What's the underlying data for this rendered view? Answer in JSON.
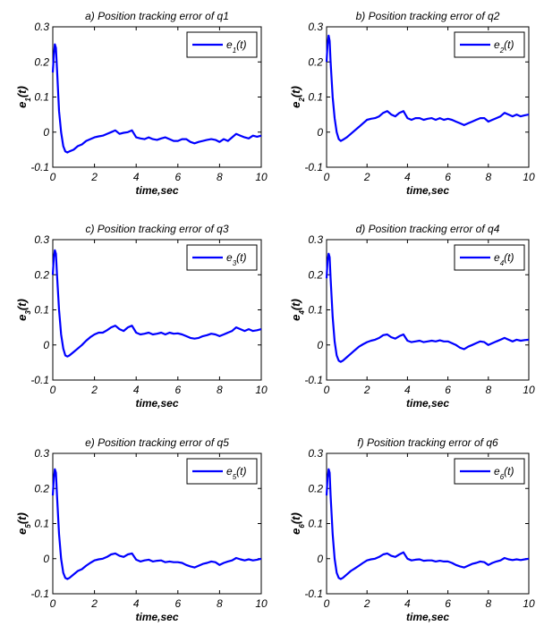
{
  "colors": {
    "line": "#0000ff",
    "axes": "#000000",
    "background": "#ffffff"
  },
  "chart_data": [
    {
      "type": "line",
      "title": "a) Position tracking error of q1",
      "xlabel": "time,sec",
      "ylabel": {
        "base": "e",
        "sub": "1",
        "tail": "(t)"
      },
      "legend": {
        "base": "e",
        "sub": "1",
        "tail": "(t)",
        "position": "top-right"
      },
      "xlim": [
        0,
        10
      ],
      "ylim": [
        -0.1,
        0.3
      ],
      "xticks": [
        "0",
        "2",
        "4",
        "6",
        "8",
        "10"
      ],
      "yticks": [
        "-0.1",
        "0",
        "0.1",
        "0.2",
        "0.3"
      ],
      "grid": false,
      "series": [
        {
          "x": [
            0,
            0.05,
            0.1,
            0.15,
            0.2,
            0.3,
            0.4,
            0.5,
            0.6,
            0.7,
            0.8,
            1,
            1.2,
            1.4,
            1.6,
            1.8,
            2,
            2.2,
            2.4,
            2.6,
            2.8,
            3,
            3.2,
            3.4,
            3.6,
            3.8,
            4,
            4.2,
            4.4,
            4.6,
            4.8,
            5,
            5.2,
            5.4,
            5.6,
            5.8,
            6,
            6.2,
            6.4,
            6.6,
            6.8,
            7,
            7.2,
            7.4,
            7.6,
            7.8,
            8,
            8.2,
            8.4,
            8.6,
            8.8,
            9,
            9.2,
            9.4,
            9.6,
            9.8,
            10
          ],
          "y": [
            0.17,
            0.22,
            0.25,
            0.24,
            0.18,
            0.06,
            0.0,
            -0.04,
            -0.055,
            -0.058,
            -0.055,
            -0.05,
            -0.04,
            -0.035,
            -0.025,
            -0.02,
            -0.015,
            -0.012,
            -0.01,
            -0.005,
            0.0,
            0.005,
            -0.005,
            -0.002,
            0.0,
            0.005,
            -0.015,
            -0.018,
            -0.02,
            -0.015,
            -0.02,
            -0.022,
            -0.018,
            -0.015,
            -0.02,
            -0.025,
            -0.025,
            -0.02,
            -0.02,
            -0.028,
            -0.032,
            -0.028,
            -0.025,
            -0.022,
            -0.02,
            -0.022,
            -0.028,
            -0.02,
            -0.025,
            -0.015,
            -0.005,
            -0.01,
            -0.015,
            -0.018,
            -0.01,
            -0.013,
            -0.01
          ]
        }
      ]
    },
    {
      "type": "line",
      "title": "b) Position tracking error of q2",
      "xlabel": "time,sec",
      "ylabel": {
        "base": "e",
        "sub": "2",
        "tail": "(t)"
      },
      "legend": {
        "base": "e",
        "sub": "2",
        "tail": "(t)",
        "position": "top-right"
      },
      "xlim": [
        0,
        10
      ],
      "ylim": [
        -0.1,
        0.3
      ],
      "xticks": [
        "0",
        "2",
        "4",
        "6",
        "8",
        "10"
      ],
      "yticks": [
        "-0.1",
        "0",
        "0.1",
        "0.2",
        "0.3"
      ],
      "grid": false,
      "series": [
        {
          "x": [
            0,
            0.05,
            0.1,
            0.15,
            0.2,
            0.3,
            0.4,
            0.5,
            0.6,
            0.7,
            0.8,
            1,
            1.2,
            1.4,
            1.6,
            1.8,
            2,
            2.2,
            2.4,
            2.6,
            2.8,
            3,
            3.2,
            3.4,
            3.6,
            3.8,
            4,
            4.2,
            4.4,
            4.6,
            4.8,
            5,
            5.2,
            5.4,
            5.6,
            5.8,
            6,
            6.2,
            6.4,
            6.6,
            6.8,
            7,
            7.2,
            7.4,
            7.6,
            7.8,
            8,
            8.2,
            8.4,
            8.6,
            8.8,
            9,
            9.2,
            9.4,
            9.6,
            9.8,
            10
          ],
          "y": [
            0.2,
            0.25,
            0.275,
            0.26,
            0.2,
            0.1,
            0.04,
            0.0,
            -0.02,
            -0.025,
            -0.022,
            -0.015,
            -0.005,
            0.005,
            0.015,
            0.025,
            0.035,
            0.038,
            0.04,
            0.045,
            0.055,
            0.06,
            0.05,
            0.045,
            0.055,
            0.06,
            0.04,
            0.035,
            0.04,
            0.04,
            0.035,
            0.038,
            0.04,
            0.035,
            0.04,
            0.035,
            0.038,
            0.035,
            0.03,
            0.025,
            0.02,
            0.025,
            0.03,
            0.035,
            0.04,
            0.04,
            0.03,
            0.035,
            0.04,
            0.045,
            0.055,
            0.05,
            0.045,
            0.05,
            0.045,
            0.048,
            0.05
          ]
        }
      ]
    },
    {
      "type": "line",
      "title": "c) Position tracking error of q3",
      "xlabel": "time,sec",
      "ylabel": {
        "base": "e",
        "sub": "3",
        "tail": "(t)"
      },
      "legend": {
        "base": "e",
        "sub": "3",
        "tail": "(t)",
        "position": "top-right"
      },
      "xlim": [
        0,
        10
      ],
      "ylim": [
        -0.1,
        0.3
      ],
      "xticks": [
        "0",
        "2",
        "4",
        "6",
        "8",
        "10"
      ],
      "yticks": [
        "-0.1",
        "0",
        "0.1",
        "0.2",
        "0.3"
      ],
      "grid": false,
      "series": [
        {
          "x": [
            0,
            0.05,
            0.1,
            0.15,
            0.2,
            0.3,
            0.4,
            0.5,
            0.6,
            0.7,
            0.8,
            1,
            1.2,
            1.4,
            1.6,
            1.8,
            2,
            2.2,
            2.4,
            2.6,
            2.8,
            3,
            3.2,
            3.4,
            3.6,
            3.8,
            4,
            4.2,
            4.4,
            4.6,
            4.8,
            5,
            5.2,
            5.4,
            5.6,
            5.8,
            6,
            6.2,
            6.4,
            6.6,
            6.8,
            7,
            7.2,
            7.4,
            7.6,
            7.8,
            8,
            8.2,
            8.4,
            8.6,
            8.8,
            9,
            9.2,
            9.4,
            9.6,
            9.8,
            10
          ],
          "y": [
            0.2,
            0.25,
            0.27,
            0.26,
            0.2,
            0.1,
            0.03,
            -0.01,
            -0.03,
            -0.033,
            -0.03,
            -0.02,
            -0.01,
            0.0,
            0.012,
            0.022,
            0.03,
            0.035,
            0.035,
            0.042,
            0.05,
            0.055,
            0.045,
            0.04,
            0.05,
            0.055,
            0.035,
            0.03,
            0.032,
            0.035,
            0.03,
            0.032,
            0.035,
            0.03,
            0.035,
            0.032,
            0.033,
            0.03,
            0.025,
            0.02,
            0.018,
            0.02,
            0.025,
            0.028,
            0.032,
            0.03,
            0.025,
            0.03,
            0.035,
            0.04,
            0.05,
            0.045,
            0.04,
            0.045,
            0.04,
            0.042,
            0.045
          ]
        }
      ]
    },
    {
      "type": "line",
      "title": "d) Position tracking error of q4",
      "xlabel": "time,sec",
      "ylabel": {
        "base": "e",
        "sub": "4",
        "tail": "(t)"
      },
      "legend": {
        "base": "e",
        "sub": "4",
        "tail": "(t)",
        "position": "top-right"
      },
      "xlim": [
        0,
        10
      ],
      "ylim": [
        -0.1,
        0.3
      ],
      "xticks": [
        "0",
        "2",
        "4",
        "6",
        "8",
        "10"
      ],
      "yticks": [
        "-0.1",
        "0",
        "0.1",
        "0.2",
        "0.3"
      ],
      "grid": false,
      "series": [
        {
          "x": [
            0,
            0.05,
            0.1,
            0.15,
            0.2,
            0.3,
            0.4,
            0.5,
            0.6,
            0.7,
            0.8,
            1,
            1.2,
            1.4,
            1.6,
            1.8,
            2,
            2.2,
            2.4,
            2.6,
            2.8,
            3,
            3.2,
            3.4,
            3.6,
            3.8,
            4,
            4.2,
            4.4,
            4.6,
            4.8,
            5,
            5.2,
            5.4,
            5.6,
            5.8,
            6,
            6.2,
            6.4,
            6.6,
            6.8,
            7,
            7.2,
            7.4,
            7.6,
            7.8,
            8,
            8.2,
            8.4,
            8.6,
            8.8,
            9,
            9.2,
            9.4,
            9.6,
            9.8,
            10
          ],
          "y": [
            0.19,
            0.24,
            0.26,
            0.25,
            0.19,
            0.08,
            0.01,
            -0.03,
            -0.045,
            -0.048,
            -0.045,
            -0.035,
            -0.025,
            -0.015,
            -0.005,
            0.002,
            0.008,
            0.012,
            0.015,
            0.02,
            0.028,
            0.03,
            0.022,
            0.018,
            0.025,
            0.03,
            0.012,
            0.008,
            0.01,
            0.012,
            0.008,
            0.01,
            0.012,
            0.01,
            0.013,
            0.01,
            0.01,
            0.005,
            0.0,
            -0.008,
            -0.012,
            -0.005,
            0.0,
            0.005,
            0.01,
            0.008,
            0.0,
            0.005,
            0.01,
            0.015,
            0.02,
            0.015,
            0.01,
            0.015,
            0.012,
            0.014,
            0.015
          ]
        }
      ]
    },
    {
      "type": "line",
      "title": "e) Position tracking error of q5",
      "xlabel": "time,sec",
      "ylabel": {
        "base": "e",
        "sub": "5",
        "tail": "(t)"
      },
      "legend": {
        "base": "e",
        "sub": "5",
        "tail": "(t)",
        "position": "top-right"
      },
      "xlim": [
        0,
        10
      ],
      "ylim": [
        -0.1,
        0.3
      ],
      "xticks": [
        "0",
        "2",
        "4",
        "6",
        "8",
        "10"
      ],
      "yticks": [
        "-0.1",
        "0",
        "0.1",
        "0.2",
        "0.3"
      ],
      "grid": false,
      "series": [
        {
          "x": [
            0,
            0.05,
            0.1,
            0.15,
            0.2,
            0.3,
            0.4,
            0.5,
            0.6,
            0.7,
            0.8,
            1,
            1.2,
            1.4,
            1.6,
            1.8,
            2,
            2.2,
            2.4,
            2.6,
            2.8,
            3,
            3.2,
            3.4,
            3.6,
            3.8,
            4,
            4.2,
            4.4,
            4.6,
            4.8,
            5,
            5.2,
            5.4,
            5.6,
            5.8,
            6,
            6.2,
            6.4,
            6.6,
            6.8,
            7,
            7.2,
            7.4,
            7.6,
            7.8,
            8,
            8.2,
            8.4,
            8.6,
            8.8,
            9,
            9.2,
            9.4,
            9.6,
            9.8,
            10
          ],
          "y": [
            0.18,
            0.23,
            0.255,
            0.245,
            0.18,
            0.07,
            0.0,
            -0.04,
            -0.055,
            -0.058,
            -0.055,
            -0.045,
            -0.035,
            -0.03,
            -0.02,
            -0.012,
            -0.005,
            -0.002,
            0.0,
            0.005,
            0.012,
            0.015,
            0.008,
            0.005,
            0.012,
            0.015,
            -0.003,
            -0.008,
            -0.005,
            -0.003,
            -0.008,
            -0.006,
            -0.005,
            -0.01,
            -0.008,
            -0.01,
            -0.01,
            -0.012,
            -0.018,
            -0.022,
            -0.025,
            -0.02,
            -0.015,
            -0.012,
            -0.008,
            -0.01,
            -0.018,
            -0.012,
            -0.008,
            -0.005,
            0.002,
            -0.002,
            -0.005,
            -0.002,
            -0.005,
            -0.003,
            0.0
          ]
        }
      ]
    },
    {
      "type": "line",
      "title": "f) Position tracking error of q6",
      "xlabel": "time,sec",
      "ylabel": {
        "base": "e",
        "sub": "6",
        "tail": "(t)"
      },
      "legend": {
        "base": "e",
        "sub": "6",
        "tail": "(t)",
        "position": "top-right"
      },
      "xlim": [
        0,
        10
      ],
      "ylim": [
        -0.1,
        0.3
      ],
      "xticks": [
        "0",
        "2",
        "4",
        "6",
        "8",
        "10"
      ],
      "yticks": [
        "-0.1",
        "0",
        "0.1",
        "0.2",
        "0.3"
      ],
      "grid": false,
      "series": [
        {
          "x": [
            0,
            0.05,
            0.1,
            0.15,
            0.2,
            0.3,
            0.4,
            0.5,
            0.6,
            0.7,
            0.8,
            1,
            1.2,
            1.4,
            1.6,
            1.8,
            2,
            2.2,
            2.4,
            2.6,
            2.8,
            3,
            3.2,
            3.4,
            3.6,
            3.8,
            4,
            4.2,
            4.4,
            4.6,
            4.8,
            5,
            5.2,
            5.4,
            5.6,
            5.8,
            6,
            6.2,
            6.4,
            6.6,
            6.8,
            7,
            7.2,
            7.4,
            7.6,
            7.8,
            8,
            8.2,
            8.4,
            8.6,
            8.8,
            9,
            9.2,
            9.4,
            9.6,
            9.8,
            10
          ],
          "y": [
            0.18,
            0.23,
            0.255,
            0.245,
            0.18,
            0.07,
            0.0,
            -0.04,
            -0.055,
            -0.058,
            -0.055,
            -0.045,
            -0.035,
            -0.028,
            -0.02,
            -0.012,
            -0.005,
            -0.002,
            0.0,
            0.005,
            0.012,
            0.015,
            0.008,
            0.005,
            0.012,
            0.018,
            0.0,
            -0.005,
            -0.003,
            -0.002,
            -0.006,
            -0.005,
            -0.005,
            -0.008,
            -0.006,
            -0.008,
            -0.008,
            -0.012,
            -0.018,
            -0.022,
            -0.025,
            -0.02,
            -0.015,
            -0.012,
            -0.008,
            -0.01,
            -0.018,
            -0.012,
            -0.008,
            -0.005,
            0.002,
            -0.002,
            -0.004,
            -0.002,
            -0.004,
            -0.002,
            0.0
          ]
        }
      ]
    }
  ]
}
